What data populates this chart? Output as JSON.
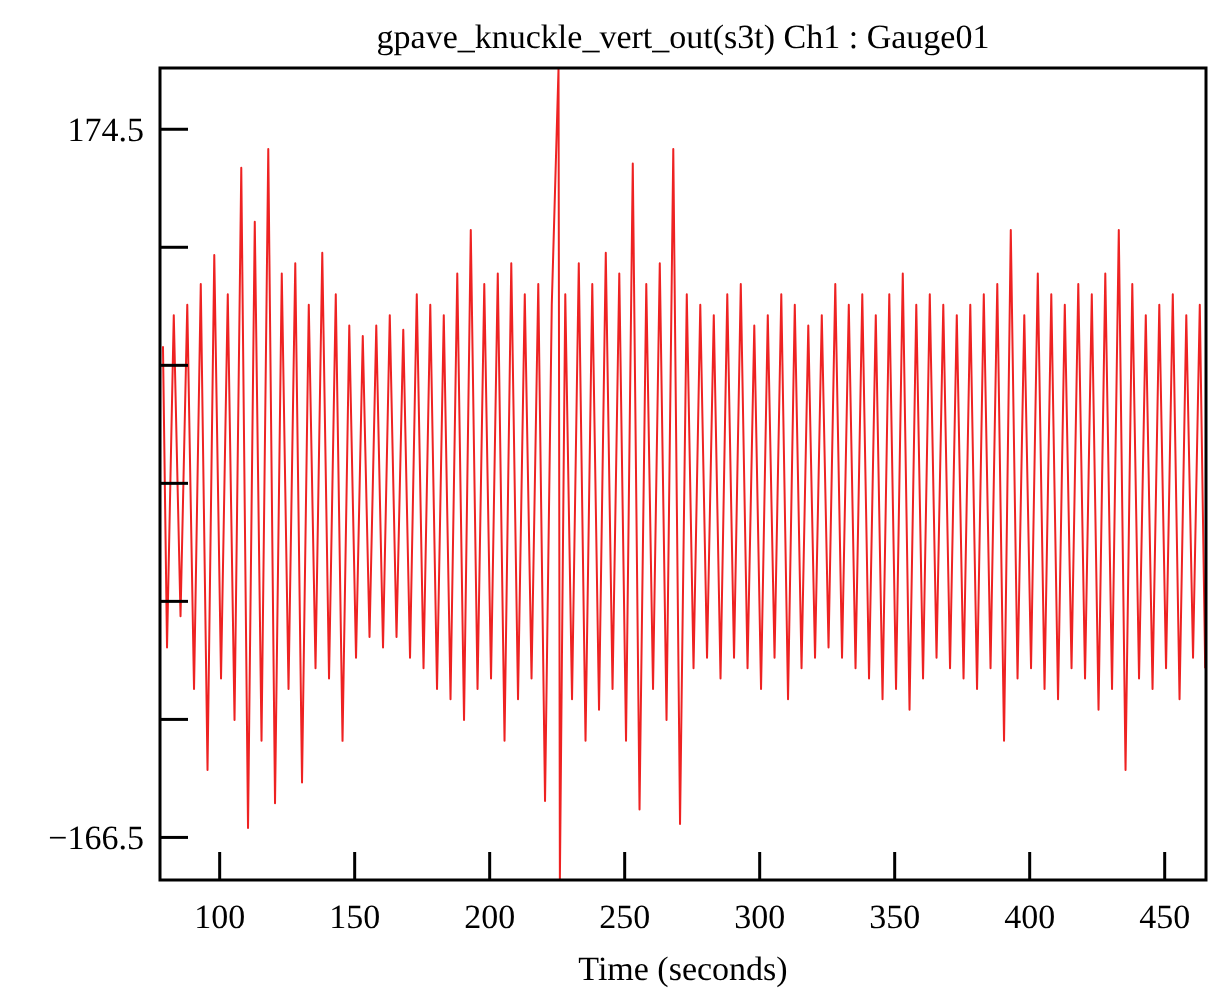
{
  "chart_data": {
    "type": "line",
    "title": "gpave_knuckle_vert_out(s3t) Ch1 : Gauge01",
    "xlabel": "Time (seconds)",
    "xlim": [
      77.9,
      465.3
    ],
    "ylim": [
      -187,
      204
    ],
    "xticks": [
      100,
      150,
      200,
      250,
      300,
      350,
      400,
      450
    ],
    "yticks": [
      -166.5,
      {
        "value": -109.67,
        "label": null
      },
      {
        "value": -52.83,
        "label": null
      },
      {
        "value": 4,
        "label": null
      },
      {
        "value": 60.83,
        "label": null
      },
      {
        "value": 117.67,
        "label": null
      },
      174.5
    ],
    "grid": false,
    "marker": "none",
    "line_style": "solid",
    "series": [
      {
        "color": "#ee2222",
        "x": [
          79,
          80.5,
          83,
          85.5,
          88,
          90.5,
          93,
          95.5,
          98,
          100.5,
          103,
          105.5,
          108,
          110.5,
          113,
          115.5,
          118,
          120.5,
          123,
          125.5,
          128,
          130.5,
          133,
          135.5,
          138,
          140.5,
          143,
          145.5,
          148,
          150.5,
          153,
          155.5,
          158,
          160.5,
          163,
          165.5,
          168,
          170.5,
          173,
          175.5,
          178,
          180.5,
          183,
          185.5,
          188,
          190.5,
          193,
          195.5,
          198,
          200.5,
          203,
          205.5,
          208,
          210.5,
          213,
          215.5,
          218,
          220.5,
          223,
          225.5,
          226,
          228,
          230.5,
          233,
          235.5,
          238,
          240.5,
          243,
          245.5,
          248,
          250.5,
          253,
          255.5,
          258,
          260.5,
          263,
          265.5,
          268,
          270.5,
          273,
          275.5,
          278,
          280.5,
          283,
          285.5,
          288,
          290.5,
          293,
          295.5,
          298,
          300.5,
          303,
          305.5,
          308,
          310.5,
          313,
          315.5,
          318,
          320.5,
          323,
          325.5,
          328,
          330.5,
          333,
          335.5,
          338,
          340.5,
          343,
          345.5,
          348,
          350.5,
          353,
          355.5,
          358,
          360.5,
          363,
          365.5,
          368,
          370.5,
          373,
          375.5,
          378,
          380.5,
          383,
          385.5,
          388,
          390.5,
          393,
          395.5,
          398,
          400.5,
          403,
          405.5,
          408,
          410.5,
          413,
          415.5,
          418,
          420.5,
          423,
          425.5,
          428,
          430.5,
          433,
          435.5,
          438,
          440.5,
          443,
          445.5,
          448,
          450.5,
          453,
          455.5,
          458,
          460.5,
          463,
          465
        ],
        "values": [
          70,
          -75,
          85,
          -60,
          90,
          -95,
          100,
          -134,
          114,
          -90,
          95,
          -110,
          156,
          -162,
          130,
          -120,
          165,
          -150,
          105,
          -95,
          110,
          -140,
          90,
          -85,
          115,
          -90,
          95,
          -120,
          80,
          -80,
          75,
          -70,
          80,
          -75,
          85,
          -70,
          78,
          -80,
          95,
          -85,
          90,
          -95,
          85,
          -100,
          105,
          -110,
          126,
          -95,
          100,
          -90,
          105,
          -120,
          110,
          -100,
          95,
          -90,
          100,
          -149,
          90,
          204,
          -187,
          95,
          -100,
          110,
          -120,
          100,
          -105,
          115,
          -95,
          105,
          -120,
          158,
          -153,
          100,
          -95,
          110,
          -110,
          165,
          -160,
          95,
          -85,
          90,
          -80,
          85,
          -90,
          95,
          -80,
          100,
          -85,
          80,
          -95,
          85,
          -80,
          95,
          -100,
          90,
          -85,
          80,
          -80,
          85,
          -75,
          100,
          -80,
          90,
          -85,
          95,
          -90,
          85,
          -100,
          95,
          -95,
          105,
          -105,
          90,
          -90,
          95,
          -80,
          90,
          -85,
          85,
          -90,
          90,
          -95,
          95,
          -85,
          100,
          -120,
          126,
          -90,
          85,
          -85,
          105,
          -95,
          95,
          -100,
          90,
          -85,
          100,
          -90,
          95,
          -105,
          105,
          -95,
          126,
          -134,
          100,
          -90,
          85,
          -95,
          90,
          -85,
          95,
          -100,
          85,
          -80,
          90,
          -85
        ]
      }
    ]
  }
}
